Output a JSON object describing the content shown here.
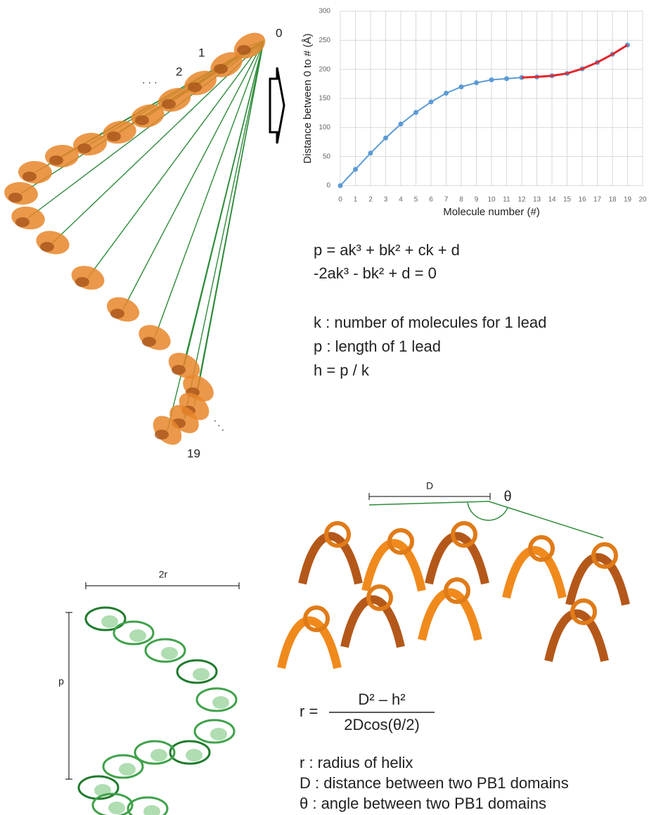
{
  "chart_data": {
    "type": "line",
    "x": [
      0,
      1,
      2,
      3,
      4,
      5,
      6,
      7,
      8,
      9,
      10,
      11,
      12,
      13,
      14,
      15,
      16,
      17,
      18,
      19
    ],
    "xlabel": "Molecule number (#)",
    "ylabel": "Distance between 0 to # (Å)",
    "xlim": [
      0,
      20
    ],
    "xticks": [
      0,
      1,
      2,
      3,
      4,
      5,
      6,
      7,
      8,
      9,
      10,
      11,
      12,
      13,
      14,
      15,
      16,
      17,
      18,
      19,
      20
    ],
    "ylim": [
      0,
      300
    ],
    "yticks": [
      0,
      50,
      100,
      150,
      200,
      250,
      300
    ],
    "grid": true,
    "series": [
      {
        "color": "#5b9bd5",
        "markers": true,
        "values": [
          0,
          28,
          56,
          82,
          106,
          126,
          144,
          159,
          170,
          177,
          182,
          184,
          186,
          187,
          189,
          193,
          201,
          212,
          226,
          242
        ]
      },
      {
        "color": "#e3262d",
        "markers": false,
        "values": [
          null,
          null,
          null,
          null,
          null,
          null,
          null,
          null,
          null,
          null,
          null,
          null,
          186,
          187,
          189,
          193,
          201,
          212,
          226,
          242
        ]
      }
    ]
  },
  "top_labels": {
    "first": "0",
    "second": "1",
    "third": "2",
    "last": "19",
    "dots": "· · ·"
  },
  "formulas": {
    "line1": "p = ak³ + bk² + ck + d",
    "line2": "-2ak³ - bk² + d = 0",
    "defs": [
      "k : number of molecules for 1 lead",
      "p : length of 1 lead",
      "h = p / k"
    ]
  },
  "bottom": {
    "D": "D",
    "theta": "θ",
    "two_r": "2r",
    "p": "p",
    "r_prefix": "r =",
    "numerator": "D² – h²",
    "denominator": "2Dcos(θ/2)",
    "defs": [
      "r : radius of helix",
      "D : distance between two PB1 domains",
      "θ : angle between two PB1 domains"
    ]
  }
}
